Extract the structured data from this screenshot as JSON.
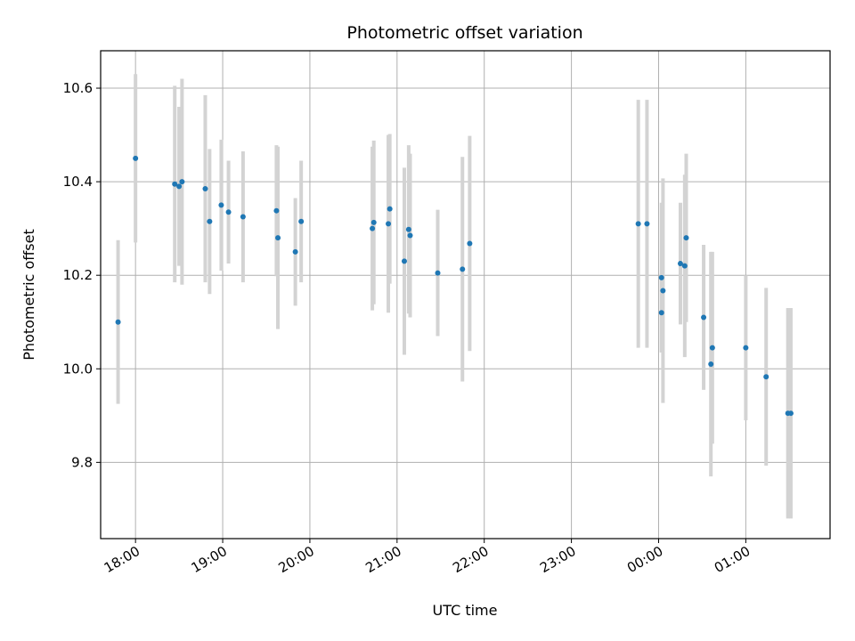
{
  "chart_data": {
    "type": "scatter",
    "title": "Photometric offset variation",
    "xlabel": "UTC time",
    "ylabel": "Photometric offset",
    "x_start_time": "17:36",
    "x_end_time": "01:58",
    "xlim": [
      "17:36",
      "01:58"
    ],
    "ylim": [
      9.637,
      10.68
    ],
    "x_ticks": [
      "18:00",
      "19:00",
      "20:00",
      "21:00",
      "22:00",
      "23:00",
      "00:00",
      "01:00"
    ],
    "y_ticks": [
      9.8,
      10.0,
      10.2,
      10.4,
      10.6
    ],
    "grid": true,
    "point_color": "#1f77b4",
    "errorbar_color": "#d3d3d3",
    "points": [
      {
        "x": "17:48",
        "y": 10.1,
        "err": 0.175
      },
      {
        "x": "18:00",
        "y": 10.45,
        "err": 0.18
      },
      {
        "x": "18:27",
        "y": 10.395,
        "err": 0.21
      },
      {
        "x": "18:30",
        "y": 10.39,
        "err": 0.17
      },
      {
        "x": "18:32",
        "y": 10.4,
        "err": 0.22
      },
      {
        "x": "18:48",
        "y": 10.385,
        "err": 0.2
      },
      {
        "x": "18:51",
        "y": 10.315,
        "err": 0.155
      },
      {
        "x": "18:59",
        "y": 10.35,
        "err": 0.14
      },
      {
        "x": "19:04",
        "y": 10.335,
        "err": 0.11
      },
      {
        "x": "19:14",
        "y": 10.325,
        "err": 0.14
      },
      {
        "x": "19:37",
        "y": 10.338,
        "err": 0.14
      },
      {
        "x": "19:38",
        "y": 10.28,
        "err": 0.195
      },
      {
        "x": "19:50",
        "y": 10.25,
        "err": 0.115
      },
      {
        "x": "19:54",
        "y": 10.315,
        "err": 0.13
      },
      {
        "x": "20:43",
        "y": 10.3,
        "err": 0.175
      },
      {
        "x": "20:44",
        "y": 10.313,
        "err": 0.175
      },
      {
        "x": "20:54",
        "y": 10.31,
        "err": 0.19
      },
      {
        "x": "20:55",
        "y": 10.342,
        "err": 0.16
      },
      {
        "x": "21:05",
        "y": 10.23,
        "err": 0.2
      },
      {
        "x": "21:08",
        "y": 10.298,
        "err": 0.18
      },
      {
        "x": "21:09",
        "y": 10.285,
        "err": 0.175
      },
      {
        "x": "21:28",
        "y": 10.205,
        "err": 0.135
      },
      {
        "x": "21:45",
        "y": 10.213,
        "err": 0.24
      },
      {
        "x": "21:50",
        "y": 10.268,
        "err": 0.23
      },
      {
        "x": "23:46",
        "y": 10.31,
        "err": 0.265
      },
      {
        "x": "23:52",
        "y": 10.31,
        "err": 0.265
      },
      {
        "x": "00:02",
        "y": 10.195,
        "err": 0.16
      },
      {
        "x": "00:02",
        "y": 10.12,
        "err": 0.085
      },
      {
        "x": "00:03",
        "y": 10.167,
        "err": 0.24
      },
      {
        "x": "00:15",
        "y": 10.225,
        "err": 0.13
      },
      {
        "x": "00:18",
        "y": 10.22,
        "err": 0.195
      },
      {
        "x": "00:19",
        "y": 10.28,
        "err": 0.18
      },
      {
        "x": "00:31",
        "y": 10.11,
        "err": 0.155
      },
      {
        "x": "00:36",
        "y": 10.01,
        "err": 0.24
      },
      {
        "x": "00:37",
        "y": 10.045,
        "err": 0.205
      },
      {
        "x": "01:00",
        "y": 10.045,
        "err": 0.155
      },
      {
        "x": "01:14",
        "y": 9.983,
        "err": 0.19
      },
      {
        "x": "01:29",
        "y": 9.905,
        "err": 0.225
      },
      {
        "x": "01:31",
        "y": 9.905,
        "err": 0.225
      }
    ]
  }
}
